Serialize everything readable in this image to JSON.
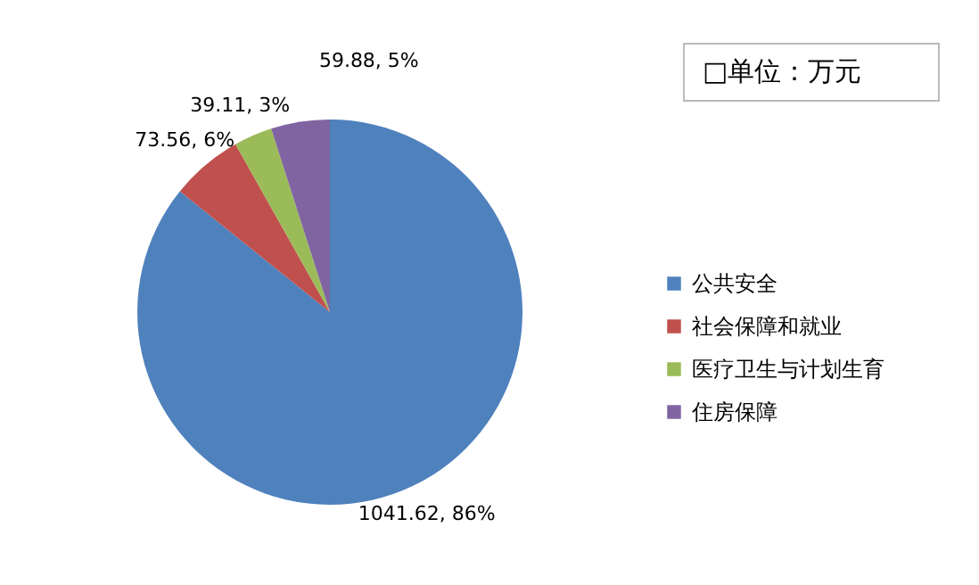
{
  "chart_data": {
    "type": "pie",
    "categories": [
      "公共安全",
      "社会保障和就业",
      "医疗卫生与计划生育",
      "住房保障"
    ],
    "values": [
      1041.62,
      73.56,
      39.11,
      59.88
    ],
    "colors": [
      "#4f81bd",
      "#c0504d",
      "#9bbb59",
      "#8064a2"
    ],
    "value_labels": [
      "1041.62, 86%",
      "73.56, 6%",
      "39.11, 3%",
      "59.88, 5%"
    ],
    "legend": "right",
    "annotations": [
      "□单位：万元"
    ]
  }
}
